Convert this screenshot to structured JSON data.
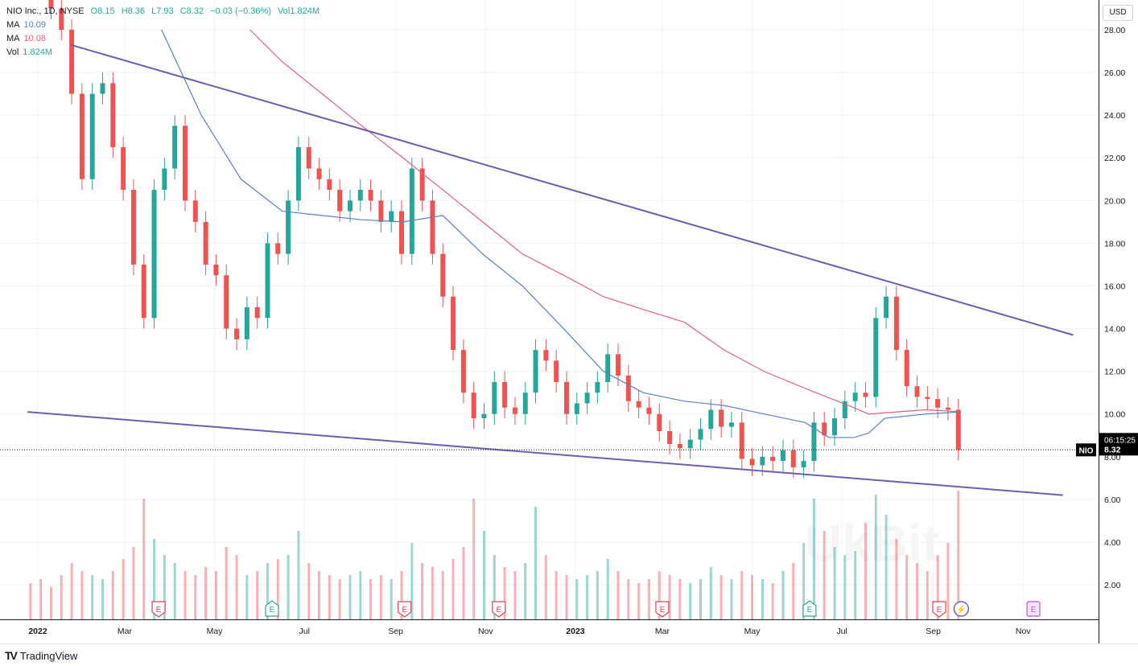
{
  "header": {
    "symbol_title": "NIO Inc., 1D, NYSE",
    "open": "O8.15",
    "high": "H8.36",
    "low": "L7.93",
    "close": "C8.32",
    "change": "−0.03 (−0.36%)",
    "volume": "Vol1.824M",
    "ma1_label": "MA",
    "ma1_value": "10.09",
    "ma2_label": "MA",
    "ma2_value": "10.08",
    "vol_label": "Vol",
    "vol_value": "1.824M"
  },
  "currency": "USD",
  "last_price": {
    "symbol": "NIO",
    "price": "8.32",
    "countdown": "06:15:25"
  },
  "brand": "TradingView",
  "watermark": "UkBit",
  "colors": {
    "up": "#26a69a",
    "down": "#ef5350",
    "ma1": "#5b7fc7",
    "ma2": "#e0627a",
    "trendline": "#6a5fb0",
    "grid": "#f0f3fa"
  },
  "chart_data": {
    "type": "candlestick",
    "ylim": [
      0,
      29
    ],
    "y_ticks": [
      "2.00",
      "4.00",
      "6.00",
      "8.00",
      "10.00",
      "12.00",
      "14.00",
      "16.00",
      "18.00",
      "20.00",
      "22.00",
      "24.00",
      "26.00",
      "28.00"
    ],
    "x_ticks": [
      {
        "label": "2022",
        "date": "2022-01-01"
      },
      {
        "label": "Mar",
        "date": "2022-03-01"
      },
      {
        "label": "May",
        "date": "2022-05-01"
      },
      {
        "label": "Jul",
        "date": "2022-07-01"
      },
      {
        "label": "Sep",
        "date": "2022-09-01"
      },
      {
        "label": "Nov",
        "date": "2022-11-01"
      },
      {
        "label": "2023",
        "date": "2023-01-01"
      },
      {
        "label": "Mar",
        "date": "2023-03-01"
      },
      {
        "label": "May",
        "date": "2023-05-01"
      },
      {
        "label": "Jul",
        "date": "2023-07-01"
      },
      {
        "label": "Sep",
        "date": "2023-09-01"
      },
      {
        "label": "Nov",
        "date": "2023-11-01"
      }
    ],
    "week_dates": [
      "2021-12-27",
      "2022-01-03",
      "2022-01-10",
      "2022-01-17",
      "2022-01-24",
      "2022-01-31",
      "2022-02-07",
      "2022-02-14",
      "2022-02-21",
      "2022-02-28",
      "2022-03-07",
      "2022-03-14",
      "2022-03-21",
      "2022-03-28",
      "2022-04-04",
      "2022-04-11",
      "2022-04-18",
      "2022-04-25",
      "2022-05-02",
      "2022-05-09",
      "2022-05-16",
      "2022-05-23",
      "2022-05-30",
      "2022-06-06",
      "2022-06-13",
      "2022-06-20",
      "2022-06-27",
      "2022-07-04",
      "2022-07-11",
      "2022-07-18",
      "2022-07-25",
      "2022-08-01",
      "2022-08-08",
      "2022-08-15",
      "2022-08-22",
      "2022-08-29",
      "2022-09-05",
      "2022-09-12",
      "2022-09-19",
      "2022-09-26",
      "2022-10-03",
      "2022-10-10",
      "2022-10-17",
      "2022-10-24",
      "2022-10-31",
      "2022-11-07",
      "2022-11-14",
      "2022-11-21",
      "2022-11-28",
      "2022-12-05",
      "2022-12-12",
      "2022-12-19",
      "2022-12-26",
      "2023-01-02",
      "2023-01-09",
      "2023-01-16",
      "2023-01-23",
      "2023-01-30",
      "2023-02-06",
      "2023-02-13",
      "2023-02-20",
      "2023-02-27",
      "2023-03-06",
      "2023-03-13",
      "2023-03-20",
      "2023-03-27",
      "2023-04-03",
      "2023-04-10",
      "2023-04-17",
      "2023-04-24",
      "2023-05-01",
      "2023-05-08",
      "2023-05-15",
      "2023-05-22",
      "2023-05-29",
      "2023-06-05",
      "2023-06-12",
      "2023-06-19",
      "2023-06-26",
      "2023-07-03",
      "2023-07-10",
      "2023-07-17",
      "2023-07-24",
      "2023-07-31",
      "2023-08-07",
      "2023-08-14",
      "2023-08-21",
      "2023-08-28",
      "2023-09-04",
      "2023-09-11",
      "2023-09-18"
    ],
    "close": [
      31,
      30,
      29,
      28,
      25,
      21,
      25,
      25.5,
      22.5,
      20.5,
      17,
      14.5,
      20.5,
      21.5,
      23.5,
      20,
      19,
      17,
      16.5,
      14,
      13.5,
      15,
      14.5,
      18,
      17.5,
      20,
      22.5,
      21.5,
      21,
      20.5,
      19.5,
      20,
      20.5,
      20,
      19,
      19.5,
      17.5,
      21.5,
      20,
      17.5,
      15.5,
      13,
      11,
      9.8,
      10,
      11.5,
      10.3,
      10,
      11,
      13,
      12.5,
      11.5,
      10,
      10.5,
      11,
      11.5,
      12.8,
      11.8,
      10.6,
      10.3,
      10,
      9.2,
      8.6,
      8.4,
      8.8,
      9.3,
      10.2,
      9.4,
      9.6,
      7.9,
      7.6,
      8.0,
      7.8,
      8.3,
      7.5,
      7.8,
      9.6,
      9.0,
      9.8,
      10.6,
      11,
      10.8,
      14.5,
      15.5,
      13,
      11.3,
      10.8,
      10.7,
      10.3,
      10.2,
      8.32
    ],
    "volume_m": [
      45,
      50,
      40,
      55,
      70,
      60,
      55,
      50,
      60,
      75,
      90,
      150,
      100,
      80,
      70,
      60,
      55,
      65,
      60,
      90,
      80,
      55,
      60,
      70,
      75,
      80,
      110,
      70,
      60,
      55,
      50,
      55,
      60,
      50,
      55,
      50,
      60,
      95,
      70,
      65,
      60,
      75,
      90,
      150,
      110,
      80,
      65,
      60,
      70,
      140,
      80,
      60,
      55,
      50,
      55,
      60,
      75,
      60,
      50,
      45,
      50,
      60,
      55,
      50,
      45,
      50,
      65,
      55,
      50,
      60,
      55,
      50,
      45,
      60,
      70,
      95,
      150,
      110,
      90,
      80,
      85,
      120,
      155,
      130,
      100,
      80,
      70,
      60,
      80,
      95,
      160
    ],
    "series": [
      {
        "name": "MA",
        "value_label": "10.09",
        "color": "#5b7fc7",
        "points": [
          [
            "2022-03-26",
            28
          ],
          [
            "2022-04-22",
            24
          ],
          [
            "2022-05-19",
            21
          ],
          [
            "2022-06-16",
            19.5
          ],
          [
            "2022-08-09",
            19.1
          ],
          [
            "2022-09-06",
            19
          ],
          [
            "2022-10-03",
            19.3
          ],
          [
            "2022-10-30",
            17.5
          ],
          [
            "2022-11-26",
            16
          ],
          [
            "2022-12-24",
            14
          ],
          [
            "2023-01-20",
            12
          ],
          [
            "2023-02-16",
            11
          ],
          [
            "2023-03-16",
            10.6
          ],
          [
            "2023-04-12",
            10.4
          ],
          [
            "2023-05-09",
            10
          ],
          [
            "2023-06-06",
            9.6
          ],
          [
            "2023-06-22",
            8.9
          ],
          [
            "2023-07-09",
            8.9
          ],
          [
            "2023-07-19",
            9.1
          ],
          [
            "2023-07-30",
            9.8
          ],
          [
            "2023-08-27",
            10
          ],
          [
            "2023-09-20",
            10.1
          ]
        ]
      },
      {
        "name": "MA",
        "value_label": "10.08",
        "color": "#e0627a",
        "points": [
          [
            "2022-05-25",
            28
          ],
          [
            "2022-06-16",
            26.5
          ],
          [
            "2022-07-13",
            25
          ],
          [
            "2022-08-09",
            23.5
          ],
          [
            "2022-09-06",
            22
          ],
          [
            "2022-10-03",
            20.5
          ],
          [
            "2022-10-30",
            19
          ],
          [
            "2022-11-26",
            17.5
          ],
          [
            "2022-12-24",
            16.5
          ],
          [
            "2023-01-20",
            15.5
          ],
          [
            "2023-02-16",
            14.9
          ],
          [
            "2023-03-16",
            14.3
          ],
          [
            "2023-04-12",
            13
          ],
          [
            "2023-05-09",
            12
          ],
          [
            "2023-06-06",
            11.2
          ],
          [
            "2023-07-09",
            10.3
          ],
          [
            "2023-07-19",
            10
          ],
          [
            "2023-08-27",
            10.2
          ],
          [
            "2023-09-20",
            10.1
          ]
        ]
      }
    ],
    "trendlines": [
      {
        "from": [
          "2022-01-23",
          27.3
        ],
        "to": [
          "2023-12-05",
          13.7
        ]
      },
      {
        "from": [
          "2021-12-25",
          10.1
        ],
        "to": [
          "2023-11-28",
          6.2
        ]
      }
    ],
    "events": [
      {
        "label": "E",
        "date": "2022-03-24",
        "kind": "past-miss"
      },
      {
        "label": "E",
        "date": "2022-06-09",
        "kind": "past-beat"
      },
      {
        "label": "E",
        "date": "2022-09-07",
        "kind": "past-miss"
      },
      {
        "label": "E",
        "date": "2022-11-10",
        "kind": "past-miss"
      },
      {
        "label": "E",
        "date": "2023-03-01",
        "kind": "past-miss"
      },
      {
        "label": "E",
        "date": "2023-06-09",
        "kind": "past-beat"
      },
      {
        "label": "E",
        "date": "2023-09-05",
        "kind": "past-miss"
      },
      {
        "label": "⚡",
        "date": "2023-09-20",
        "kind": "dividend-split"
      },
      {
        "label": "E",
        "date": "2023-11-08",
        "kind": "future"
      }
    ]
  }
}
